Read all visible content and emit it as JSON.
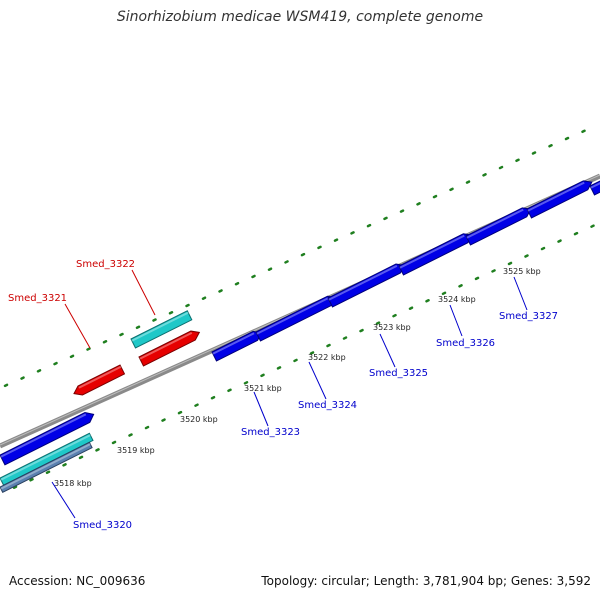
{
  "title": "Sinorhizobium medicae WSM419, complete genome",
  "footer": {
    "accession": "Accession: NC_009636",
    "summary": "Topology: circular; Length: 3,781,904 bp; Genes: 3,592"
  },
  "colors": {
    "forward_cds": "#0000e6",
    "reverse_cds": "#e60000",
    "tick": "#1f7f1f",
    "backbone": "#8a8a8a",
    "cyan_feature": "#1fc8c8",
    "label_forward": "#0000cc",
    "label_reverse": "#cc0000"
  },
  "kbp_labels": [
    "3518 kbp",
    "3519 kbp",
    "3520 kbp",
    "3521 kbp",
    "3522 kbp",
    "3523 kbp",
    "3524 kbp",
    "3525 kbp"
  ],
  "genes": [
    {
      "name": "Smed_3320",
      "strand": "forward"
    },
    {
      "name": "Smed_3321",
      "strand": "reverse"
    },
    {
      "name": "Smed_3322",
      "strand": "reverse"
    },
    {
      "name": "Smed_3323",
      "strand": "forward"
    },
    {
      "name": "Smed_3324",
      "strand": "forward"
    },
    {
      "name": "Smed_3325",
      "strand": "forward"
    },
    {
      "name": "Smed_3326",
      "strand": "forward"
    },
    {
      "name": "Smed_3327",
      "strand": "forward"
    }
  ]
}
